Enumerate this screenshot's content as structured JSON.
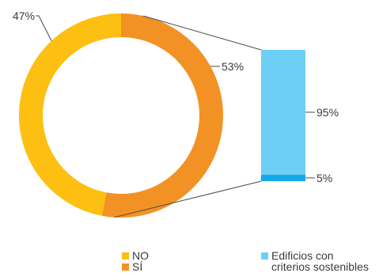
{
  "chart_data": [
    {
      "type": "pie",
      "variant": "donut",
      "slices": [
        {
          "label": "NO",
          "value": 47,
          "value_label": "47%",
          "color": "#FDBF12"
        },
        {
          "label": "SÍ",
          "value": 53,
          "value_label": "53%",
          "color": "#F39224"
        }
      ],
      "legend_position": "bottom"
    },
    {
      "type": "bar",
      "variant": "stacked-100",
      "breakdown_of": "SÍ",
      "segments": [
        {
          "value": 95,
          "value_label": "95%",
          "color": "#6ECFF6"
        },
        {
          "value": 5,
          "value_label": "5%",
          "color": "#14A9E8"
        }
      ],
      "legend": "Edificios con criterios sostenibles"
    }
  ],
  "legend": {
    "no": "NO",
    "si": "SÍ",
    "sustainable_line1": "Edificios con",
    "sustainable_line2": "criterios sostenibles"
  },
  "colors": {
    "no": "#FDBF12",
    "si": "#F39224",
    "bar_light": "#6ECFF6",
    "bar_dark": "#14A9E8",
    "connector": "#4a4a4a"
  }
}
